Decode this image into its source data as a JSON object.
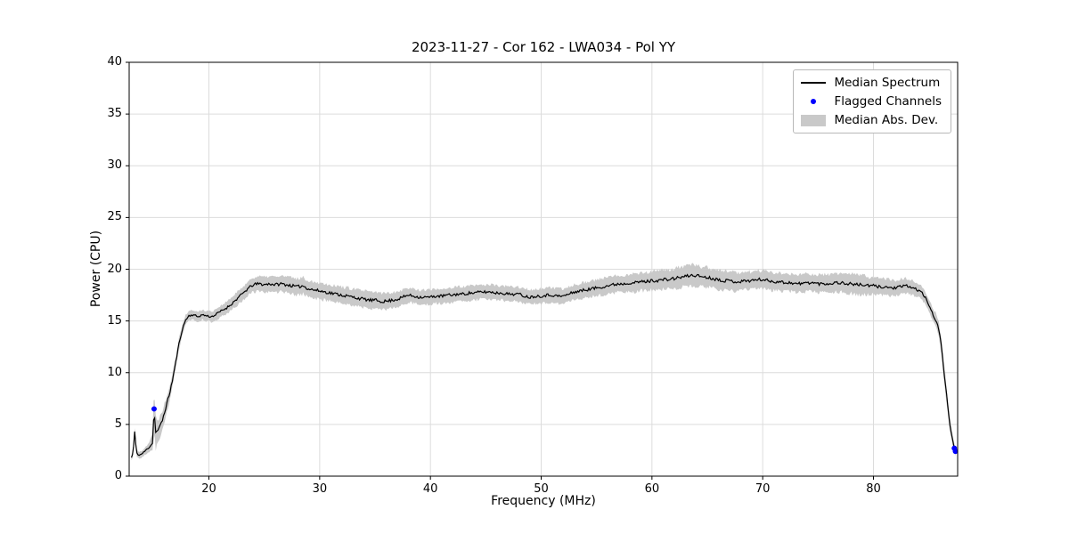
{
  "chart_data": {
    "type": "line",
    "title": "2023-11-27 - Cor 162 - LWA034 - Pol YY",
    "xlabel": "Frequency (MHz)",
    "ylabel": "Power (CPU)",
    "xlim": [
      12.8,
      87.6
    ],
    "ylim": [
      0,
      40
    ],
    "xticks": [
      20,
      30,
      40,
      50,
      60,
      70,
      80
    ],
    "yticks": [
      0,
      5,
      10,
      15,
      20,
      25,
      30,
      35,
      40
    ],
    "grid": true,
    "legend": {
      "position": "upper right",
      "entries": [
        {
          "label": "Median Spectrum",
          "type": "line"
        },
        {
          "label": "Flagged Channels",
          "type": "marker"
        },
        {
          "label": "Median Abs. Dev.",
          "type": "patch"
        }
      ]
    },
    "colors": {
      "line": "#000000",
      "flagged": "#0000ff",
      "band": "#c9c9c9",
      "grid": "#dcdcdc",
      "spine": "#000000"
    },
    "series": {
      "median_spectrum": [
        [
          13.0,
          1.8
        ],
        [
          13.15,
          2.2
        ],
        [
          13.3,
          4.3
        ],
        [
          13.45,
          2.3
        ],
        [
          13.7,
          2.0
        ],
        [
          14.0,
          2.2
        ],
        [
          14.3,
          2.5
        ],
        [
          14.6,
          2.8
        ],
        [
          14.9,
          3.2
        ],
        [
          15.05,
          6.5
        ],
        [
          15.2,
          4.2
        ],
        [
          15.5,
          4.6
        ],
        [
          15.8,
          5.4
        ],
        [
          16.1,
          6.6
        ],
        [
          16.4,
          7.8
        ],
        [
          16.7,
          9.2
        ],
        [
          17.0,
          11.0
        ],
        [
          17.3,
          12.8
        ],
        [
          17.6,
          14.2
        ],
        [
          17.9,
          15.1
        ],
        [
          18.2,
          15.5
        ],
        [
          18.6,
          15.6
        ],
        [
          19.0,
          15.4
        ],
        [
          19.4,
          15.6
        ],
        [
          19.8,
          15.5
        ],
        [
          20.2,
          15.4
        ],
        [
          20.6,
          15.6
        ],
        [
          21.0,
          15.9
        ],
        [
          21.5,
          16.2
        ],
        [
          22.0,
          16.6
        ],
        [
          22.5,
          17.1
        ],
        [
          23.0,
          17.6
        ],
        [
          23.5,
          18.1
        ],
        [
          24.0,
          18.5
        ],
        [
          24.5,
          18.6
        ],
        [
          25.0,
          18.5
        ],
        [
          25.5,
          18.6
        ],
        [
          26.0,
          18.5
        ],
        [
          26.5,
          18.6
        ],
        [
          27.0,
          18.5
        ],
        [
          27.5,
          18.4
        ],
        [
          28.0,
          18.3
        ],
        [
          28.5,
          18.4
        ],
        [
          29.0,
          18.1
        ],
        [
          29.5,
          18.0
        ],
        [
          30.0,
          17.9
        ],
        [
          30.5,
          17.8
        ],
        [
          31.0,
          17.7
        ],
        [
          31.5,
          17.6
        ],
        [
          32.0,
          17.5
        ],
        [
          32.5,
          17.4
        ],
        [
          33.0,
          17.3
        ],
        [
          33.5,
          17.2
        ],
        [
          34.0,
          17.1
        ],
        [
          34.5,
          17.0
        ],
        [
          35.0,
          17.0
        ],
        [
          35.5,
          16.9
        ],
        [
          36.0,
          16.9
        ],
        [
          36.5,
          17.0
        ],
        [
          37.0,
          17.1
        ],
        [
          37.5,
          17.3
        ],
        [
          38.0,
          17.5
        ],
        [
          38.5,
          17.4
        ],
        [
          39.0,
          17.3
        ],
        [
          39.5,
          17.3
        ],
        [
          40.0,
          17.3
        ],
        [
          40.5,
          17.4
        ],
        [
          41.0,
          17.4
        ],
        [
          41.5,
          17.5
        ],
        [
          42.0,
          17.5
        ],
        [
          42.5,
          17.6
        ],
        [
          43.0,
          17.6
        ],
        [
          43.5,
          17.7
        ],
        [
          44.0,
          17.7
        ],
        [
          44.5,
          17.8
        ],
        [
          45.0,
          17.8
        ],
        [
          45.5,
          17.8
        ],
        [
          46.0,
          17.7
        ],
        [
          46.5,
          17.7
        ],
        [
          47.0,
          17.6
        ],
        [
          47.5,
          17.6
        ],
        [
          48.0,
          17.6
        ],
        [
          48.5,
          17.4
        ],
        [
          49.0,
          17.3
        ],
        [
          49.5,
          17.4
        ],
        [
          50.0,
          17.4
        ],
        [
          50.5,
          17.5
        ],
        [
          51.0,
          17.5
        ],
        [
          51.5,
          17.4
        ],
        [
          52.0,
          17.4
        ],
        [
          52.5,
          17.6
        ],
        [
          53.0,
          17.8
        ],
        [
          53.5,
          17.9
        ],
        [
          54.0,
          18.0
        ],
        [
          54.5,
          18.1
        ],
        [
          55.0,
          18.2
        ],
        [
          55.5,
          18.3
        ],
        [
          56.0,
          18.4
        ],
        [
          56.5,
          18.5
        ],
        [
          57.0,
          18.6
        ],
        [
          57.5,
          18.6
        ],
        [
          58.0,
          18.7
        ],
        [
          58.5,
          18.7
        ],
        [
          59.0,
          18.8
        ],
        [
          59.5,
          18.8
        ],
        [
          60.0,
          18.9
        ],
        [
          60.5,
          18.9
        ],
        [
          61.0,
          19.0
        ],
        [
          61.5,
          19.0
        ],
        [
          62.0,
          19.1
        ],
        [
          62.5,
          19.2
        ],
        [
          63.0,
          19.3
        ],
        [
          63.5,
          19.4
        ],
        [
          64.0,
          19.4
        ],
        [
          64.5,
          19.3
        ],
        [
          65.0,
          19.2
        ],
        [
          65.5,
          19.1
        ],
        [
          66.0,
          19.0
        ],
        [
          66.5,
          18.9
        ],
        [
          67.0,
          18.9
        ],
        [
          67.5,
          18.8
        ],
        [
          68.0,
          18.8
        ],
        [
          68.5,
          18.9
        ],
        [
          69.0,
          18.9
        ],
        [
          69.5,
          19.0
        ],
        [
          70.0,
          19.0
        ],
        [
          70.5,
          18.9
        ],
        [
          71.0,
          18.8
        ],
        [
          71.5,
          18.8
        ],
        [
          72.0,
          18.7
        ],
        [
          72.5,
          18.7
        ],
        [
          73.0,
          18.6
        ],
        [
          73.5,
          18.6
        ],
        [
          74.0,
          18.7
        ],
        [
          74.5,
          18.7
        ],
        [
          75.0,
          18.6
        ],
        [
          75.5,
          18.6
        ],
        [
          76.0,
          18.6
        ],
        [
          76.5,
          18.7
        ],
        [
          77.0,
          18.7
        ],
        [
          77.5,
          18.6
        ],
        [
          78.0,
          18.6
        ],
        [
          78.5,
          18.5
        ],
        [
          79.0,
          18.5
        ],
        [
          79.5,
          18.4
        ],
        [
          80.0,
          18.4
        ],
        [
          80.5,
          18.3
        ],
        [
          81.0,
          18.3
        ],
        [
          81.5,
          18.2
        ],
        [
          82.0,
          18.2
        ],
        [
          82.5,
          18.3
        ],
        [
          83.0,
          18.4
        ],
        [
          83.5,
          18.2
        ],
        [
          84.0,
          18.0
        ],
        [
          84.3,
          17.8
        ],
        [
          84.6,
          17.4
        ],
        [
          84.9,
          16.8
        ],
        [
          85.2,
          16.0
        ],
        [
          85.5,
          15.3
        ],
        [
          85.7,
          15.0
        ],
        [
          85.9,
          14.2
        ],
        [
          86.1,
          12.8
        ],
        [
          86.3,
          10.8
        ],
        [
          86.5,
          8.8
        ],
        [
          86.7,
          6.8
        ],
        [
          86.9,
          5.0
        ],
        [
          87.1,
          3.8
        ],
        [
          87.25,
          2.9
        ],
        [
          87.4,
          2.4
        ]
      ],
      "median_abs_dev": [
        [
          13.0,
          0.25
        ],
        [
          13.3,
          0.4
        ],
        [
          13.7,
          0.3
        ],
        [
          14.5,
          0.4
        ],
        [
          14.9,
          0.8
        ],
        [
          15.05,
          2.2
        ],
        [
          15.3,
          1.2
        ],
        [
          15.8,
          0.9
        ],
        [
          16.5,
          0.7
        ],
        [
          17.5,
          0.5
        ],
        [
          18.5,
          0.45
        ],
        [
          20.0,
          0.5
        ],
        [
          22.0,
          0.6
        ],
        [
          24.0,
          0.7
        ],
        [
          26.0,
          0.75
        ],
        [
          28.0,
          0.8
        ],
        [
          30.0,
          0.8
        ],
        [
          32.0,
          0.8
        ],
        [
          34.0,
          0.8
        ],
        [
          36.0,
          0.8
        ],
        [
          38.0,
          0.7
        ],
        [
          40.0,
          0.7
        ],
        [
          42.0,
          0.7
        ],
        [
          44.0,
          0.7
        ],
        [
          46.0,
          0.7
        ],
        [
          48.0,
          0.7
        ],
        [
          50.0,
          0.7
        ],
        [
          52.0,
          0.7
        ],
        [
          54.0,
          0.75
        ],
        [
          56.0,
          0.8
        ],
        [
          58.0,
          0.85
        ],
        [
          60.0,
          0.9
        ],
        [
          62.0,
          0.95
        ],
        [
          63.5,
          1.0
        ],
        [
          65.0,
          0.95
        ],
        [
          67.0,
          0.9
        ],
        [
          69.0,
          0.85
        ],
        [
          71.0,
          0.85
        ],
        [
          73.0,
          0.85
        ],
        [
          75.0,
          0.85
        ],
        [
          77.0,
          0.9
        ],
        [
          78.5,
          0.95
        ],
        [
          80.0,
          0.85
        ],
        [
          82.0,
          0.75
        ],
        [
          83.5,
          0.7
        ],
        [
          85.0,
          0.6
        ],
        [
          86.0,
          0.7
        ],
        [
          86.5,
          0.8
        ],
        [
          87.0,
          0.6
        ],
        [
          87.4,
          0.4
        ]
      ],
      "flagged_channels": [
        [
          15.05,
          6.5
        ],
        [
          87.3,
          2.7
        ],
        [
          87.4,
          2.4
        ]
      ]
    }
  }
}
